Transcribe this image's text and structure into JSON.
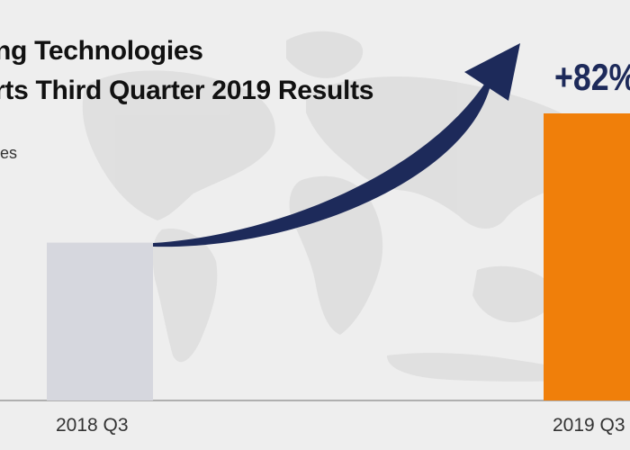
{
  "header": {
    "title_line1": "ng Technologies",
    "title_line2": "rts Third Quarter 2019 Results",
    "side_label": "es"
  },
  "annotation": {
    "growth": "+82%"
  },
  "colors": {
    "background": "#eeeeee",
    "map": "#dedede",
    "bar_2018": "#d6d7de",
    "bar_2019": "#f07f0a",
    "arrow": "#1d2a5a"
  },
  "chart_data": {
    "type": "bar",
    "categories": [
      "2018 Q3",
      "2019 Q3"
    ],
    "values": [
      55,
      100
    ],
    "value_unit": "percent of 2019 Q3 bar height (no axis printed)",
    "annotation": "+82%",
    "ylim": [
      0,
      100
    ],
    "grid": false,
    "legend": "none"
  }
}
